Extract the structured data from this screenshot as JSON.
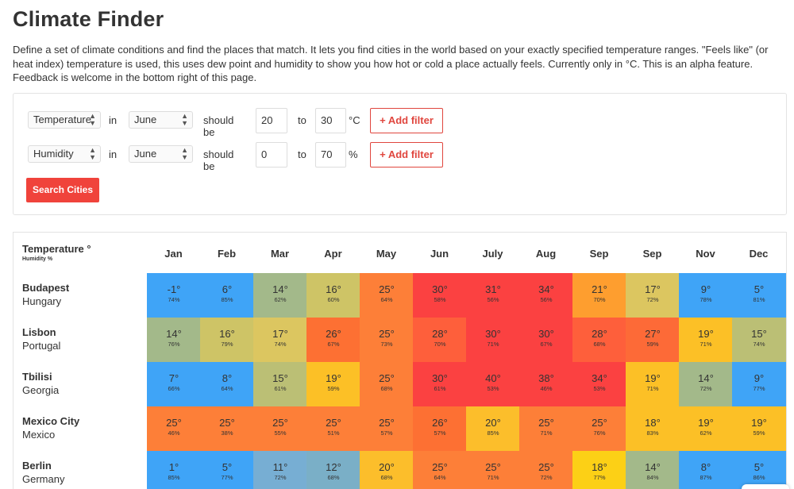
{
  "page": {
    "title": "Climate Finder",
    "description": "Define a set of climate conditions and find the places that match. It lets you find cities in the world based on your exactly specified temperature ranges. \"Feels like\" (or heat index) temperature is used, this uses dew point and humidity to show you how hot or cold a place actually feels. Currently only in °C. This is an alpha feature. Feedback is welcome in the bottom right of this page."
  },
  "filters": [
    {
      "metric": "Temperature",
      "in_label": "in",
      "month": "June",
      "should_label": "should be",
      "from": "20",
      "to_label": "to",
      "to": "30",
      "unit": "°C",
      "add_label": "+  Add filter"
    },
    {
      "metric": "Humidity",
      "in_label": "in",
      "month": "June",
      "should_label": "should be",
      "from": "0",
      "to_label": "to",
      "to": "70",
      "unit": "%",
      "add_label": "+  Add filter"
    }
  ],
  "search_label": "Search Cities",
  "table": {
    "header_temp": "Temperature °",
    "header_humidity": "Humidity %",
    "months": [
      "Jan",
      "Feb",
      "Mar",
      "Apr",
      "May",
      "Jun",
      "July",
      "Aug",
      "Sep",
      "Sep",
      "Nov",
      "Dec"
    ],
    "rows": [
      {
        "city": "Budapest",
        "country": "Hungary",
        "temps": [
          "-1°",
          "6°",
          "14°",
          "16°",
          "25°",
          "30°",
          "31°",
          "34°",
          "21°",
          "17°",
          "9°",
          "5°"
        ],
        "hums": [
          "74%",
          "85%",
          "62%",
          "60%",
          "64%",
          "58%",
          "56%",
          "56%",
          "70%",
          "72%",
          "78%",
          "81%"
        ],
        "colors": [
          "#3fa4f7",
          "#3fa4f7",
          "#a3b98a",
          "#cec466",
          "#fd7f38",
          "#fb4141",
          "#fb4141",
          "#fb4141",
          "#fe9e2f",
          "#dcc660",
          "#3fa4f7",
          "#3fa4f7"
        ]
      },
      {
        "city": "Lisbon",
        "country": "Portugal",
        "temps": [
          "14°",
          "16°",
          "17°",
          "26°",
          "25°",
          "28°",
          "30°",
          "30°",
          "28°",
          "27°",
          "19°",
          "15°"
        ],
        "hums": [
          "76%",
          "79%",
          "74%",
          "67%",
          "73%",
          "70%",
          "71%",
          "67%",
          "68%",
          "59%",
          "71%",
          "74%"
        ],
        "colors": [
          "#a3b98a",
          "#cec466",
          "#dcc660",
          "#fd7033",
          "#fd7f38",
          "#fe5f3b",
          "#fb4141",
          "#fb4141",
          "#fe5f3b",
          "#fd6a37",
          "#fcc026",
          "#bbbf75"
        ]
      },
      {
        "city": "Tbilisi",
        "country": "Georgia",
        "temps": [
          "7°",
          "8°",
          "15°",
          "19°",
          "25°",
          "30°",
          "40°",
          "38°",
          "34°",
          "19°",
          "14°",
          "9°"
        ],
        "hums": [
          "66%",
          "64%",
          "61%",
          "59%",
          "68%",
          "61%",
          "53%",
          "46%",
          "53%",
          "71%",
          "72%",
          "77%"
        ],
        "colors": [
          "#3fa4f7",
          "#3fa4f7",
          "#bbbf75",
          "#fcc026",
          "#fd7f38",
          "#fb4141",
          "#fb4141",
          "#fb4141",
          "#fb4141",
          "#fcc026",
          "#a3b98a",
          "#3fa4f7"
        ]
      },
      {
        "city": "Mexico City",
        "country": "Mexico",
        "temps": [
          "25°",
          "25°",
          "25°",
          "25°",
          "25°",
          "26°",
          "20°",
          "25°",
          "25°",
          "18°",
          "19°",
          "19°"
        ],
        "hums": [
          "46%",
          "38%",
          "55%",
          "51%",
          "57%",
          "57%",
          "85%",
          "71%",
          "76%",
          "83%",
          "62%",
          "59%"
        ],
        "colors": [
          "#fd7f38",
          "#fd7f38",
          "#fd7f38",
          "#fd7f38",
          "#fd7f38",
          "#fd7033",
          "#fcbe2b",
          "#fd7f38",
          "#fd7f38",
          "#fcc026",
          "#fcc026",
          "#fcc026"
        ]
      },
      {
        "city": "Berlin",
        "country": "Germany",
        "temps": [
          "1°",
          "5°",
          "11°",
          "12°",
          "20°",
          "25°",
          "25°",
          "25°",
          "18°",
          "14°",
          "8°",
          "5°"
        ],
        "hums": [
          "85%",
          "77%",
          "72%",
          "68%",
          "68%",
          "64%",
          "71%",
          "72%",
          "77%",
          "84%",
          "87%",
          "86%"
        ],
        "colors": [
          "#3fa4f7",
          "#3fa4f7",
          "#77aed3",
          "#7aafc7",
          "#fcbe2b",
          "#fd7f38",
          "#fd7f38",
          "#fd7f38",
          "#fcd016",
          "#a3b98a",
          "#3fa4f7",
          "#3fa4f7"
        ]
      }
    ]
  }
}
